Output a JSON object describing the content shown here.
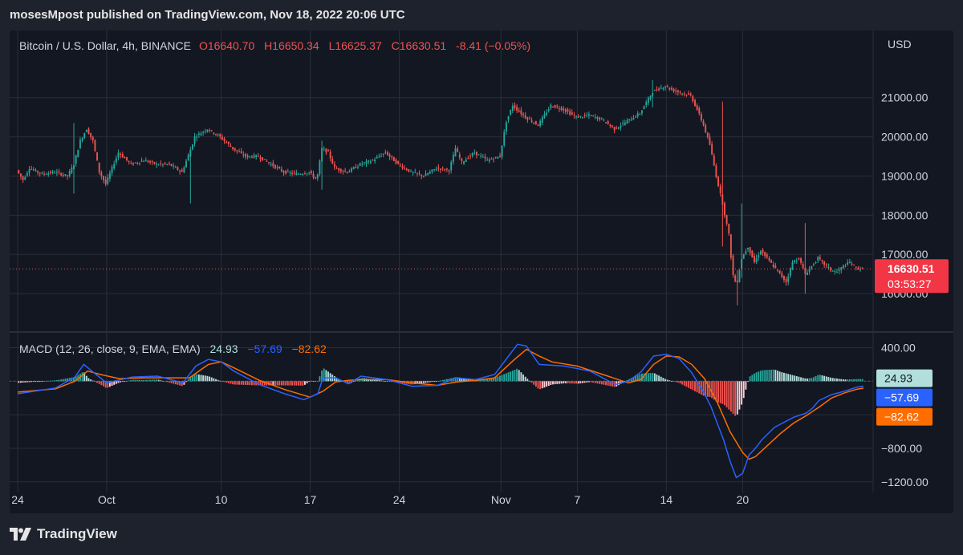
{
  "header": {
    "publish_line": "mosesMpost published on TradingView.com, Nov 18, 2022 20:06 UTC"
  },
  "brand": {
    "name": "TradingView",
    "icon": "tradingview-logo-icon"
  },
  "colors": {
    "up": "#26a69a",
    "down": "#ef5350",
    "macd": "#2962ff",
    "signal": "#ff6d00",
    "hist_pos": "#b2dfdb",
    "hist_neg": "#ffcdd2",
    "grid": "#2a2e39",
    "text": "#d1d4dc"
  },
  "chart_data": [
    {
      "type": "candlestick",
      "legend": {
        "symbol": "Bitcoin / U.S. Dollar, 4h, BINANCE",
        "open": "O16640.70",
        "high": "H16650.34",
        "low": "L16625.37",
        "close": "C16630.51",
        "change": "-8.41 (−0.05%)"
      },
      "currency_label": "USD",
      "y_ticks": [
        "21000.00",
        "20000.00",
        "19000.00",
        "18000.00",
        "17000.00",
        "16000.00"
      ],
      "y_tick_values": [
        21000,
        20000,
        19000,
        18000,
        17000,
        16000
      ],
      "ylim": [
        15100,
        22100
      ],
      "last_price": "16630.51",
      "last_price_value": 16630.51,
      "countdown": "03:53:27",
      "x_ticks": [
        "24",
        "Oct",
        "10",
        "17",
        "24",
        "Nov",
        "7",
        "14",
        "20"
      ],
      "x_tick_days": [
        0,
        7,
        16,
        23,
        30,
        38,
        44,
        51,
        57
      ],
      "x_start": "2022-09-23",
      "close_path": [
        [
          0,
          19150
        ],
        [
          0.5,
          18900
        ],
        [
          1,
          19200
        ],
        [
          2,
          19050
        ],
        [
          3,
          19100
        ],
        [
          4,
          19000
        ],
        [
          4.5,
          19300
        ],
        [
          5,
          19900
        ],
        [
          5.5,
          20200
        ],
        [
          6,
          19900
        ],
        [
          6.5,
          19100
        ],
        [
          7,
          18800
        ],
        [
          8,
          19600
        ],
        [
          9,
          19300
        ],
        [
          10,
          19400
        ],
        [
          11,
          19300
        ],
        [
          12,
          19300
        ],
        [
          13,
          19100
        ],
        [
          13.7,
          19700
        ],
        [
          14,
          20000
        ],
        [
          15,
          20200
        ],
        [
          15.5,
          20100
        ],
        [
          16,
          20000
        ],
        [
          17,
          19700
        ],
        [
          18,
          19500
        ],
        [
          19,
          19500
        ],
        [
          20,
          19300
        ],
        [
          21,
          19100
        ],
        [
          22,
          19050
        ],
        [
          23,
          19100
        ],
        [
          23.6,
          18900
        ],
        [
          24,
          19700
        ],
        [
          24.5,
          19600
        ],
        [
          25,
          19200
        ],
        [
          26,
          19100
        ],
        [
          27,
          19300
        ],
        [
          28,
          19400
        ],
        [
          29,
          19600
        ],
        [
          30,
          19300
        ],
        [
          31,
          19100
        ],
        [
          32,
          19000
        ],
        [
          33,
          19200
        ],
        [
          34,
          19150
        ],
        [
          34.5,
          19700
        ],
        [
          35,
          19350
        ],
        [
          36,
          19600
        ],
        [
          37,
          19400
        ],
        [
          38,
          19500
        ],
        [
          38.5,
          20400
        ],
        [
          39,
          20800
        ],
        [
          40,
          20500
        ],
        [
          41,
          20300
        ],
        [
          42,
          20800
        ],
        [
          43,
          20700
        ],
        [
          44,
          20500
        ],
        [
          45,
          20550
        ],
        [
          46,
          20450
        ],
        [
          47,
          20200
        ],
        [
          48,
          20400
        ],
        [
          49,
          20600
        ],
        [
          50,
          21150
        ],
        [
          51,
          21300
        ],
        [
          51.5,
          21200
        ],
        [
          52,
          21150
        ],
        [
          53,
          21050
        ],
        [
          53.5,
          20700
        ],
        [
          54,
          20300
        ],
        [
          54.5,
          19800
        ],
        [
          55,
          19000
        ],
        [
          55.5,
          18300
        ],
        [
          56,
          17500
        ],
        [
          56.3,
          16500
        ],
        [
          56.6,
          16200
        ],
        [
          57,
          16900
        ],
        [
          57.5,
          17200
        ],
        [
          58,
          16800
        ],
        [
          58.5,
          17100
        ],
        [
          59,
          16900
        ],
        [
          59.5,
          16700
        ],
        [
          60,
          16500
        ],
        [
          60.5,
          16300
        ],
        [
          61,
          16800
        ],
        [
          61.5,
          16900
        ],
        [
          62,
          16500
        ],
        [
          62.5,
          16700
        ],
        [
          63,
          16900
        ],
        [
          63.5,
          16750
        ],
        [
          64,
          16600
        ],
        [
          64.5,
          16550
        ],
        [
          65,
          16700
        ],
        [
          65.5,
          16800
        ],
        [
          66,
          16650
        ],
        [
          66.5,
          16630
        ]
      ],
      "wicks": [
        [
          4.5,
          18550,
          20350
        ],
        [
          13.7,
          18300,
          19750
        ],
        [
          24,
          18650,
          19900
        ],
        [
          50,
          20750,
          21450
        ],
        [
          55.5,
          17200,
          20900
        ],
        [
          56.6,
          15700,
          16600
        ],
        [
          57,
          16400,
          18300
        ],
        [
          62,
          16000,
          17800
        ]
      ]
    },
    {
      "type": "macd",
      "legend": {
        "label": "MACD (12, 26, close, 9, EMA, EMA)",
        "histogram": "24.93",
        "macd": "−57.69",
        "signal": "−82.62"
      },
      "y_ticks": [
        "400.00",
        "−800.00",
        "−1200.00"
      ],
      "y_tick_values": [
        400,
        -800,
        -1200
      ],
      "ylim": [
        -1250,
        500
      ],
      "badges": [
        {
          "label": "24.93",
          "value": 24.93
        },
        {
          "label": "−57.69",
          "value": -57.69
        },
        {
          "label": "−82.62",
          "value": -82.62
        }
      ],
      "macd_line": [
        [
          0,
          -150
        ],
        [
          3,
          -80
        ],
        [
          4.5,
          50
        ],
        [
          5.2,
          200
        ],
        [
          6,
          100
        ],
        [
          7,
          -20
        ],
        [
          9,
          50
        ],
        [
          11,
          60
        ],
        [
          13,
          -20
        ],
        [
          14,
          180
        ],
        [
          15,
          260
        ],
        [
          16,
          230
        ],
        [
          17,
          120
        ],
        [
          19,
          -40
        ],
        [
          21,
          -150
        ],
        [
          22.5,
          -220
        ],
        [
          23.6,
          -150
        ],
        [
          24,
          40
        ],
        [
          25,
          40
        ],
        [
          26,
          -30
        ],
        [
          27,
          60
        ],
        [
          29,
          20
        ],
        [
          31,
          -60
        ],
        [
          33,
          -50
        ],
        [
          34.5,
          40
        ],
        [
          36,
          20
        ],
        [
          37.5,
          80
        ],
        [
          38.5,
          280
        ],
        [
          39.3,
          440
        ],
        [
          40,
          420
        ],
        [
          41,
          200
        ],
        [
          42,
          190
        ],
        [
          43,
          180
        ],
        [
          45,
          120
        ],
        [
          47,
          -40
        ],
        [
          48,
          0
        ],
        [
          49,
          110
        ],
        [
          50,
          300
        ],
        [
          51,
          320
        ],
        [
          52,
          270
        ],
        [
          53,
          100
        ],
        [
          54,
          -150
        ],
        [
          54.5,
          -300
        ],
        [
          55,
          -500
        ],
        [
          55.5,
          -700
        ],
        [
          56,
          -950
        ],
        [
          56.5,
          -1150
        ],
        [
          57,
          -1100
        ],
        [
          57.5,
          -880
        ],
        [
          58,
          -800
        ],
        [
          58.5,
          -700
        ],
        [
          59.5,
          -550
        ],
        [
          61,
          -430
        ],
        [
          62,
          -380
        ],
        [
          62.5,
          -320
        ],
        [
          63,
          -230
        ],
        [
          64,
          -160
        ],
        [
          65,
          -120
        ],
        [
          66,
          -70
        ],
        [
          66.5,
          -58
        ]
      ],
      "signal_line": [
        [
          0,
          -130
        ],
        [
          3,
          -90
        ],
        [
          4.5,
          0
        ],
        [
          5.5,
          120
        ],
        [
          6.5,
          80
        ],
        [
          8,
          30
        ],
        [
          10,
          40
        ],
        [
          12,
          40
        ],
        [
          13.5,
          40
        ],
        [
          15,
          200
        ],
        [
          16,
          230
        ],
        [
          17,
          160
        ],
        [
          19,
          10
        ],
        [
          21,
          -100
        ],
        [
          23,
          -190
        ],
        [
          24,
          -120
        ],
        [
          25,
          -10
        ],
        [
          26,
          10
        ],
        [
          27,
          20
        ],
        [
          29,
          20
        ],
        [
          31,
          -20
        ],
        [
          33,
          -50
        ],
        [
          34.5,
          -10
        ],
        [
          36,
          10
        ],
        [
          37.5,
          40
        ],
        [
          39,
          250
        ],
        [
          40,
          380
        ],
        [
          41,
          300
        ],
        [
          42,
          230
        ],
        [
          44,
          180
        ],
        [
          46,
          80
        ],
        [
          48,
          -20
        ],
        [
          49,
          20
        ],
        [
          50,
          200
        ],
        [
          51,
          300
        ],
        [
          52,
          290
        ],
        [
          53,
          200
        ],
        [
          54,
          30
        ],
        [
          55,
          -250
        ],
        [
          56,
          -600
        ],
        [
          57,
          -850
        ],
        [
          57.5,
          -930
        ],
        [
          58,
          -900
        ],
        [
          59,
          -760
        ],
        [
          60,
          -620
        ],
        [
          61,
          -500
        ],
        [
          62,
          -410
        ],
        [
          63,
          -310
        ],
        [
          64,
          -200
        ],
        [
          65,
          -140
        ],
        [
          66,
          -95
        ],
        [
          66.5,
          -83
        ]
      ]
    }
  ]
}
